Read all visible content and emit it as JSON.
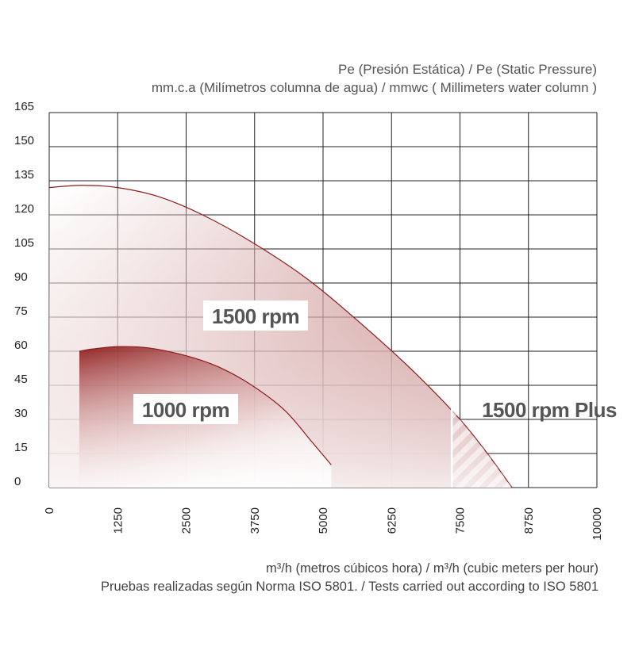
{
  "chart_data": {
    "type": "area",
    "ylabel_lines": [
      "Pe (Presión Estática) /  Pe (Static Pressure)",
      "mm.c.a (Milímetros columna de agua) / mmwc ( Millimeters water column )"
    ],
    "xlabel": "m³/h (metros cúbicos hora) / m³/h (cubic meters per hour)",
    "note": "Pruebas realizadas según Norma ISO 5801. / Tests carried out according to ISO 5801",
    "x_ticks": [
      "0",
      "1250",
      "2500",
      "3750",
      "5000",
      "6250",
      "7500",
      "8750",
      "10000"
    ],
    "y_ticks": [
      "0",
      "15",
      "30",
      "45",
      "60",
      "75",
      "90",
      "105",
      "120",
      "135",
      "150",
      "165"
    ],
    "xlim": [
      0,
      10000
    ],
    "ylim": [
      0,
      165
    ],
    "grid": true,
    "colors": {
      "curve": "#8e1b1b",
      "grid": "#222222",
      "label_text": "#555555"
    },
    "series": [
      {
        "name": "1500 rpm",
        "x": [
          0,
          600,
          1250,
          2000,
          2800,
          3700,
          4700,
          5700,
          6700,
          7500,
          8000,
          8450
        ],
        "y": [
          132,
          133,
          132,
          128,
          120,
          108,
          92,
          72,
          50,
          30,
          15,
          0
        ]
      },
      {
        "name": "1000 rpm",
        "x": [
          550,
          800,
          1250,
          1800,
          2500,
          3100,
          3700,
          4300,
          4800,
          5150
        ],
        "y": [
          60,
          61,
          62,
          61.5,
          58,
          53,
          45,
          34,
          20,
          10
        ]
      },
      {
        "name": "1500 rpm Plus",
        "x": [
          7350,
          7500,
          8000,
          8450
        ],
        "y": [
          35,
          30,
          15,
          0
        ]
      }
    ]
  }
}
